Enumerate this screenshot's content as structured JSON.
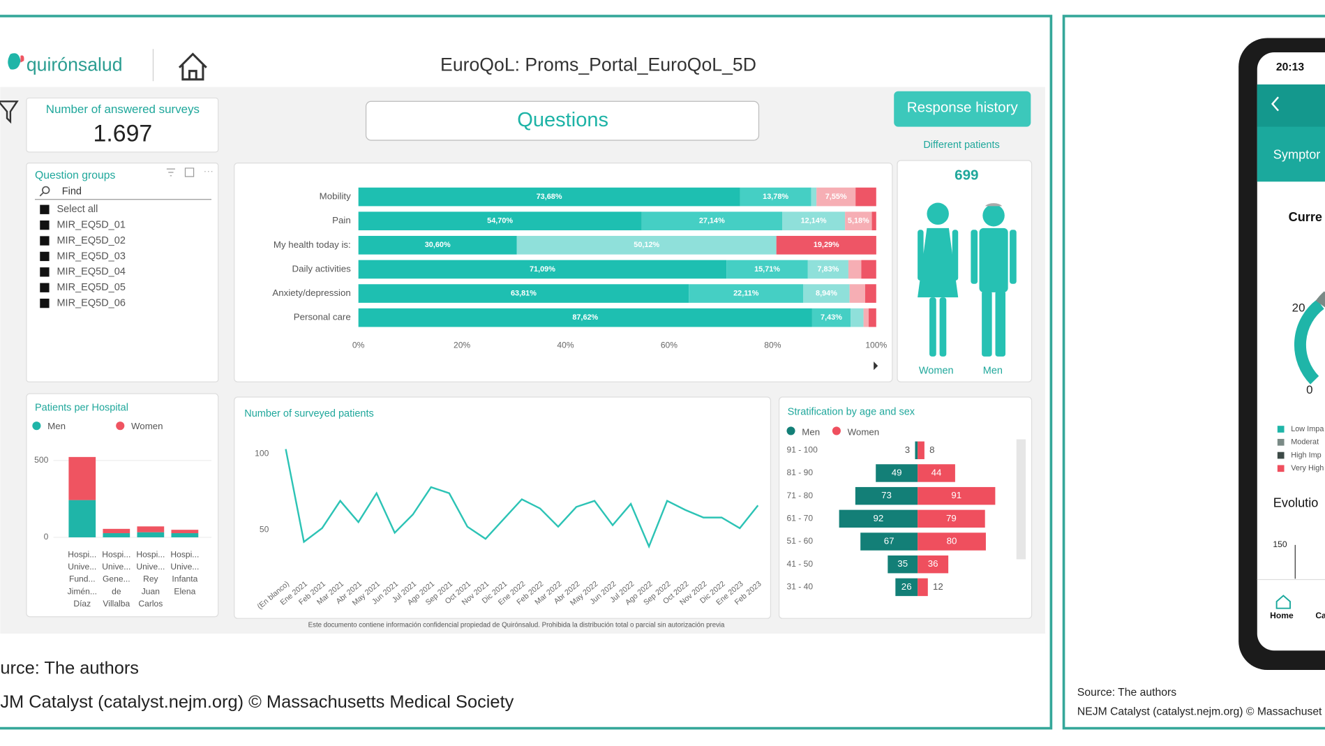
{
  "header": {
    "logo": "quirónsalud",
    "title": "EuroQoL: Proms_Portal_EuroQoL_5D"
  },
  "kpi": {
    "label": "Number of answered surveys",
    "value": "1.697"
  },
  "questions": "Questions",
  "response_history": "Response history",
  "question_groups": {
    "title": "Question groups",
    "search": "Find",
    "items": [
      "Select all",
      "MIR_EQ5D_01",
      "MIR_EQ5D_02",
      "MIR_EQ5D_03",
      "MIR_EQ5D_04",
      "MIR_EQ5D_05",
      "MIR_EQ5D_06"
    ]
  },
  "patients": {
    "label": "Different patients",
    "count": 699,
    "women": "Women",
    "men": "Men"
  },
  "charts": [
    {
      "type": "hbar",
      "stacked": true,
      "categories": [
        "Mobility",
        "Pain",
        "My health today is:",
        "Daily activities",
        "Anxiety/depression",
        "Personal care"
      ],
      "series": [
        {
          "color": "#1ebfb1",
          "values": [
            73.68,
            54.7,
            30.6,
            71.09,
            63.81,
            87.62
          ],
          "value_labels": [
            "73,68%",
            "54,70%",
            "30,60%",
            "71,09%",
            "63,81%",
            "87,62%"
          ]
        },
        {
          "color": "#45cfc4",
          "values": [
            13.78,
            27.14,
            0,
            15.71,
            22.11,
            7.43
          ],
          "value_labels": [
            "13,78%",
            "27,14%",
            null,
            "15,71%",
            "22,11%",
            "7,43%"
          ]
        },
        {
          "color": "#8fe0da",
          "values": [
            1.0,
            12.14,
            50.12,
            7.83,
            8.94,
            2.5
          ],
          "value_labels": [
            null,
            "12,14%",
            "50,12%",
            "7,83%",
            "8,94%",
            null
          ]
        },
        {
          "color": "#f6aeb4",
          "values": [
            7.55,
            5.18,
            0,
            2.5,
            3.0,
            1.0
          ],
          "value_labels": [
            "7,55%",
            "5,18%",
            null,
            null,
            null,
            null
          ]
        },
        {
          "color": "#ee5566",
          "values": [
            3.99,
            0.84,
            19.29,
            2.87,
            2.14,
            1.45
          ],
          "value_labels": [
            null,
            null,
            "19,29%",
            null,
            null,
            null
          ]
        }
      ],
      "xlim": [
        0,
        100
      ],
      "xticks": [
        {
          "value": 0,
          "label": "0%"
        },
        {
          "value": 20,
          "label": "20%"
        },
        {
          "value": 40,
          "label": "40%"
        },
        {
          "value": 60,
          "label": "60%"
        },
        {
          "value": 80,
          "label": "80%"
        },
        {
          "value": 100,
          "label": "100%"
        }
      ]
    },
    {
      "type": "bar",
      "stacked": true,
      "title": "Patients per Hospital",
      "categories": [
        [
          "Hospi...",
          "Unive...",
          "Fund...",
          "Jimén...",
          "Díaz"
        ],
        [
          "Hospi...",
          "Unive...",
          "Gene...",
          "de",
          "Villalba"
        ],
        [
          "Hospi...",
          "Unive...",
          "Rey",
          "Juan",
          "Carlos"
        ],
        [
          "Hospi...",
          "Unive...",
          "Infanta",
          "Elena"
        ]
      ],
      "series": [
        {
          "name": "Men",
          "color": "#1fb5a8",
          "values": [
            242,
            27,
            33,
            27
          ]
        },
        {
          "name": "Women",
          "color": "#ef5461",
          "values": [
            280,
            28,
            38,
            22
          ]
        }
      ],
      "ylim": [
        0,
        560
      ],
      "yticks": [
        0,
        500
      ],
      "grid": true
    },
    {
      "type": "line",
      "title": "Number of surveyed patients",
      "color": "#2cc3b5",
      "categories": [
        "(En blanco)",
        "Ene 2021",
        "Feb 2021",
        "Mar 2021",
        "Abr 2021",
        "May 2021",
        "Jun 2021",
        "Jul 2021",
        "Ago 2021",
        "Sep 2021",
        "Oct 2021",
        "Nov 2021",
        "Dic 2021",
        "Ene 2022",
        "Feb 2022",
        "Mar 2022",
        "Abr 2022",
        "May 2022",
        "Jun 2022",
        "Jul 2022",
        "Ago 2022",
        "Sep 2022",
        "Oct 2022",
        "Nov 2022",
        "Dic 2022",
        "Ene 2023",
        "Feb 2023"
      ],
      "values": [
        103,
        42,
        51,
        69,
        55,
        74,
        48,
        60,
        78,
        74,
        52,
        44,
        57,
        70,
        64,
        52,
        65,
        69,
        53,
        67,
        39,
        69,
        63,
        58,
        58,
        51,
        66
      ],
      "ylim": [
        25,
        110
      ],
      "yticks": [
        50,
        100
      ]
    },
    {
      "type": "pyramid",
      "title": "Stratification by age and sex",
      "categories": [
        "91 - 100",
        "81 - 90",
        "71 - 80",
        "61 - 70",
        "51 - 60",
        "41 - 50",
        "31 - 40"
      ],
      "series": [
        {
          "name": "Men",
          "color": "#137f77",
          "values": [
            3,
            49,
            73,
            92,
            67,
            35,
            26
          ]
        },
        {
          "name": "Women",
          "color": "#ef4f5e",
          "values": [
            8,
            44,
            91,
            79,
            80,
            36,
            12
          ]
        }
      ]
    }
  ],
  "confidential": "Este documento contiene información confidencial propiedad de Quirónsalud. Prohibida la distribución total o parcial sin autorización previa",
  "footer_left": [
    "urce: The authors",
    "JM Catalyst (catalyst.nejm.org) © Massachusetts Medical Society"
  ],
  "phone": {
    "time": "20:13",
    "tab": "Symptor",
    "current": "Curre",
    "gauge_labels": [
      "20",
      "0"
    ],
    "legend": [
      "Low Impa",
      "Moderat",
      "High Imp",
      "Very High"
    ],
    "evolution": "Evolutio",
    "axis_label": "150",
    "nav": [
      "Home",
      "Ca"
    ]
  },
  "footer_right": [
    "Source: The authors",
    "NEJM Catalyst (catalyst.nejm.org) © Massachuset"
  ]
}
